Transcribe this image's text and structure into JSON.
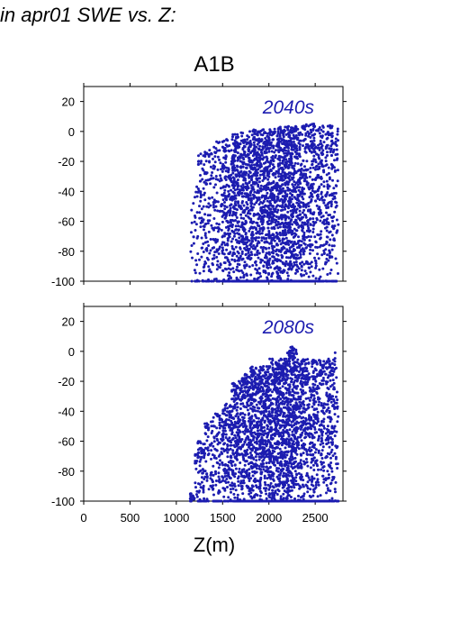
{
  "figure": {
    "title": "in apr01 SWE vs. Z:",
    "scenario": "A1B",
    "xlabel": "Z(m)"
  },
  "colors": {
    "points": "#1c1cb0",
    "axes": "#000000"
  },
  "chart_data": [
    {
      "type": "scatter",
      "title": "2040s",
      "xlim": [
        0,
        2800
      ],
      "ylim": [
        -100,
        30
      ],
      "xticks": [
        0,
        500,
        1000,
        1500,
        2000,
        2500
      ],
      "xtick_labels": [],
      "yticks": [
        20,
        0,
        -20,
        -40,
        -60,
        -80,
        -100
      ],
      "ytick_labels": [
        "20",
        "0",
        "-20",
        "-40",
        "-60",
        "-80",
        "-100"
      ],
      "xlabel": "",
      "ylabel": "",
      "grid": false,
      "point_color": "#1c1cb0",
      "x_range_of_points": [
        1150,
        2750
      ],
      "y_range_of_points": [
        -100,
        5
      ],
      "density_profile": [
        {
          "x": 1150,
          "weight": 0.02,
          "ymin": -100,
          "ymax": -45
        },
        {
          "x": 1250,
          "weight": 0.05,
          "ymin": -100,
          "ymax": -15
        },
        {
          "x": 1350,
          "weight": 0.06,
          "ymin": -100,
          "ymax": -10
        },
        {
          "x": 1450,
          "weight": 0.07,
          "ymin": -100,
          "ymax": -5
        },
        {
          "x": 1550,
          "weight": 0.12,
          "ymin": -100,
          "ymax": -5
        },
        {
          "x": 1650,
          "weight": 0.16,
          "ymin": -100,
          "ymax": 0
        },
        {
          "x": 1750,
          "weight": 0.16,
          "ymin": -100,
          "ymax": 0
        },
        {
          "x": 1850,
          "weight": 0.17,
          "ymin": -100,
          "ymax": 2
        },
        {
          "x": 1950,
          "weight": 0.17,
          "ymin": -100,
          "ymax": 2
        },
        {
          "x": 2050,
          "weight": 0.18,
          "ymin": -100,
          "ymax": 3
        },
        {
          "x": 2150,
          "weight": 0.2,
          "ymin": -100,
          "ymax": 3
        },
        {
          "x": 2250,
          "weight": 0.2,
          "ymin": -100,
          "ymax": 4
        },
        {
          "x": 2350,
          "weight": 0.14,
          "ymin": -100,
          "ymax": 4
        },
        {
          "x": 2450,
          "weight": 0.12,
          "ymin": -100,
          "ymax": 5
        },
        {
          "x": 2550,
          "weight": 0.1,
          "ymin": -100,
          "ymax": 5
        },
        {
          "x": 2650,
          "weight": 0.08,
          "ymin": -100,
          "ymax": 4
        },
        {
          "x": 2720,
          "weight": 0.05,
          "ymin": -100,
          "ymax": 4
        }
      ]
    },
    {
      "type": "scatter",
      "title": "2080s",
      "xlim": [
        0,
        2800
      ],
      "ylim": [
        -100,
        30
      ],
      "xticks": [
        0,
        500,
        1000,
        1500,
        2000,
        2500
      ],
      "xtick_labels": [
        "0",
        "500",
        "1000",
        "1500",
        "2000",
        "2500"
      ],
      "yticks": [
        20,
        0,
        -20,
        -40,
        -60,
        -80,
        -100
      ],
      "ytick_labels": [
        "20",
        "0",
        "-20",
        "-40",
        "-60",
        "-80",
        "-100"
      ],
      "xlabel": "",
      "ylabel": "",
      "grid": false,
      "point_color": "#1c1cb0",
      "x_range_of_points": [
        1150,
        2750
      ],
      "y_range_of_points": [
        -100,
        3
      ],
      "density_profile": [
        {
          "x": 1150,
          "weight": 0.02,
          "ymin": -100,
          "ymax": -95
        },
        {
          "x": 1250,
          "weight": 0.04,
          "ymin": -100,
          "ymax": -60
        },
        {
          "x": 1350,
          "weight": 0.04,
          "ymin": -100,
          "ymax": -45
        },
        {
          "x": 1450,
          "weight": 0.05,
          "ymin": -100,
          "ymax": -40
        },
        {
          "x": 1550,
          "weight": 0.08,
          "ymin": -100,
          "ymax": -35
        },
        {
          "x": 1650,
          "weight": 0.12,
          "ymin": -100,
          "ymax": -20
        },
        {
          "x": 1750,
          "weight": 0.14,
          "ymin": -100,
          "ymax": -15
        },
        {
          "x": 1850,
          "weight": 0.16,
          "ymin": -100,
          "ymax": -10
        },
        {
          "x": 1950,
          "weight": 0.17,
          "ymin": -100,
          "ymax": -10
        },
        {
          "x": 2050,
          "weight": 0.18,
          "ymin": -100,
          "ymax": -5
        },
        {
          "x": 2150,
          "weight": 0.2,
          "ymin": -100,
          "ymax": -5
        },
        {
          "x": 2250,
          "weight": 0.2,
          "ymin": -100,
          "ymax": 3
        },
        {
          "x": 2350,
          "weight": 0.14,
          "ymin": -100,
          "ymax": -5
        },
        {
          "x": 2450,
          "weight": 0.12,
          "ymin": -100,
          "ymax": -5
        },
        {
          "x": 2550,
          "weight": 0.1,
          "ymin": -100,
          "ymax": -5
        },
        {
          "x": 2650,
          "weight": 0.08,
          "ymin": -100,
          "ymax": -5
        },
        {
          "x": 2720,
          "weight": 0.05,
          "ymin": -100,
          "ymax": 0
        }
      ]
    }
  ]
}
